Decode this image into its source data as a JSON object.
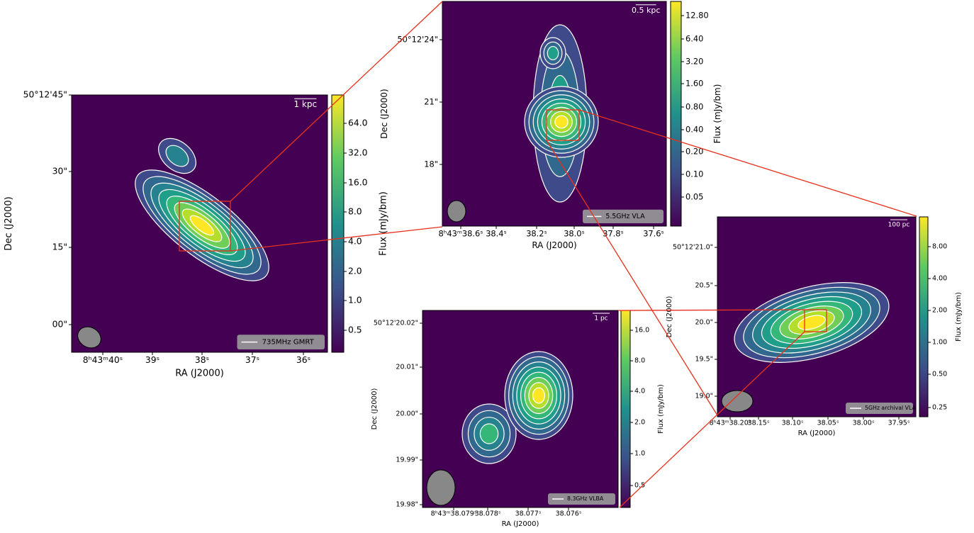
{
  "panels": [
    {
      "legend": "735MHz GMRT",
      "scale_bar": "1 kpc",
      "x_label": "RA (J2000)",
      "y_label": "Dec (J2000)",
      "colorbar_label": "Flux (mJy/bm)",
      "x_ticks": [
        "8ʰ43ᵐ40ˢ",
        "39ˢ",
        "38ˢ",
        "37ˢ",
        "36ˢ"
      ],
      "y_ticks": [
        "50°12'45\"",
        "30\"",
        "15\"",
        "00\""
      ],
      "colorbar_ticks": [
        "64.0",
        "32.0",
        "16.0",
        "8.0",
        "4.0",
        "2.0",
        "1.0",
        "0.5"
      ]
    },
    {
      "legend": "5.5GHz VLA",
      "scale_bar": "0.5 kpc",
      "x_label": "RA (J2000)",
      "y_label": "Dec (J2000)",
      "colorbar_label": "Flux (mJy/bm)",
      "x_ticks": [
        "8ʰ43ᵐ38.6ˢ",
        "38.4ˢ",
        "38.2ˢ",
        "38.0ˢ",
        "37.8ˢ",
        "37.6ˢ"
      ],
      "y_ticks": [
        "50°12'24\"",
        "21\"",
        "18\""
      ],
      "colorbar_ticks": [
        "12.80",
        "6.40",
        "3.20",
        "1.60",
        "0.80",
        "0.40",
        "0.20",
        "0.10",
        "0.05"
      ]
    },
    {
      "legend": "5GHz archival VLA",
      "scale_bar": "100 pc",
      "x_label": "RA (J2000)",
      "y_label": "Dec (J2000)",
      "colorbar_label": "Flux (mJy/bm)",
      "x_ticks": [
        "8ʰ43ᵐ38.20ˢ",
        "38.15ˢ",
        "38.10ˢ",
        "38.05ˢ",
        "38.00ˢ",
        "37.95ˢ"
      ],
      "y_ticks": [
        "50°12'21.0\"",
        "20.5\"",
        "20.0\"",
        "19.5\"",
        "19.0\""
      ],
      "colorbar_ticks": [
        "8.00",
        "4.00",
        "2.00",
        "1.00",
        "0.50",
        "0.25"
      ]
    },
    {
      "legend": "8.3GHz VLBA",
      "scale_bar": "1 pc",
      "x_label": "RA (J2000)",
      "y_label": "Dec (J2000)",
      "colorbar_label": "Flux (mJy/bm)",
      "x_ticks": [
        "8ʰ43ᵐ38.079ˢ",
        "38.078ˢ",
        "38.077ˢ",
        "38.076ˢ"
      ],
      "y_ticks": [
        "50°12'20.02\"",
        "20.01\"",
        "20.00\"",
        "19.99\"",
        "19.98\""
      ],
      "colorbar_ticks": [
        "16.0",
        "8.0",
        "4.0",
        "2.0",
        "1.0",
        "0.5"
      ]
    }
  ]
}
